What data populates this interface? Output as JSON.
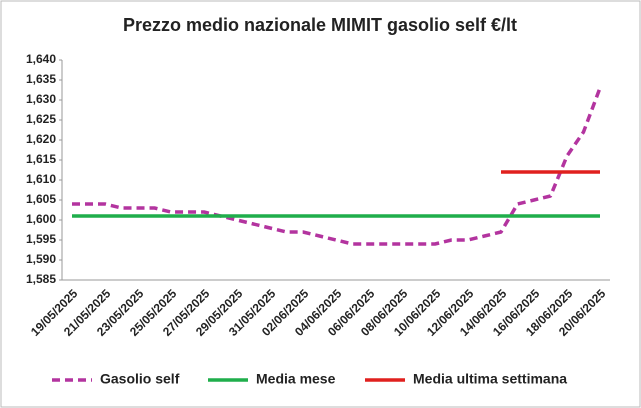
{
  "chart_data": {
    "type": "line",
    "title": "Prezzo medio nazionale MIMIT gasolio self €/lt",
    "categories": [
      "19/05/2025",
      null,
      "21/05/2025",
      null,
      "23/05/2025",
      null,
      "25/05/2025",
      null,
      "27/05/2025",
      null,
      "29/05/2025",
      null,
      "31/05/2025",
      null,
      "02/06/2025",
      null,
      "04/06/2025",
      null,
      "06/06/2025",
      null,
      "08/06/2025",
      null,
      "10/06/2025",
      null,
      "12/06/2025",
      null,
      "14/06/2025",
      null,
      "16/06/2025",
      null,
      "18/06/2025",
      null,
      "20/06/2025"
    ],
    "series": [
      {
        "name": "Gasolio self",
        "color": "#b3349f",
        "dashed": true,
        "values": [
          1.604,
          1.604,
          1.604,
          1.603,
          1.603,
          1.603,
          1.602,
          1.602,
          1.602,
          1.601,
          1.6,
          1.599,
          1.598,
          1.597,
          1.597,
          1.596,
          1.595,
          1.594,
          1.594,
          1.594,
          1.594,
          1.594,
          1.594,
          1.595,
          1.595,
          1.596,
          1.597,
          1.604,
          1.605,
          1.606,
          1.616,
          1.622,
          1.633
        ]
      },
      {
        "name": "Media mese",
        "color": "#1fae4b",
        "dashed": false,
        "values": [
          1.601,
          1.601,
          1.601,
          1.601,
          1.601,
          1.601,
          1.601,
          1.601,
          1.601,
          1.601,
          1.601,
          1.601,
          1.601,
          1.601,
          1.601,
          1.601,
          1.601,
          1.601,
          1.601,
          1.601,
          1.601,
          1.601,
          1.601,
          1.601,
          1.601,
          1.601,
          1.601,
          1.601,
          1.601,
          1.601,
          1.601,
          1.601,
          1.601
        ]
      },
      {
        "name": "Media ultima settimana",
        "color": "#e0201e",
        "dashed": false,
        "values": [
          null,
          null,
          null,
          null,
          null,
          null,
          null,
          null,
          null,
          null,
          null,
          null,
          null,
          null,
          null,
          null,
          null,
          null,
          null,
          null,
          null,
          null,
          null,
          null,
          null,
          null,
          1.612,
          1.612,
          1.612,
          1.612,
          1.612,
          1.612,
          1.612
        ]
      }
    ],
    "ylim": [
      1.585,
      1.64
    ],
    "yticks": [
      {
        "value": 1.585,
        "label": "1,585"
      },
      {
        "value": 1.59,
        "label": "1,590"
      },
      {
        "value": 1.595,
        "label": "1,595"
      },
      {
        "value": 1.6,
        "label": "1,600"
      },
      {
        "value": 1.605,
        "label": "1,605"
      },
      {
        "value": 1.61,
        "label": "1,610"
      },
      {
        "value": 1.615,
        "label": "1,615"
      },
      {
        "value": 1.62,
        "label": "1,620"
      },
      {
        "value": 1.625,
        "label": "1,625"
      },
      {
        "value": 1.63,
        "label": "1,630"
      },
      {
        "value": 1.635,
        "label": "1,635"
      },
      {
        "value": 1.64,
        "label": "1,640"
      }
    ],
    "grid": false,
    "legend": "bottom"
  }
}
